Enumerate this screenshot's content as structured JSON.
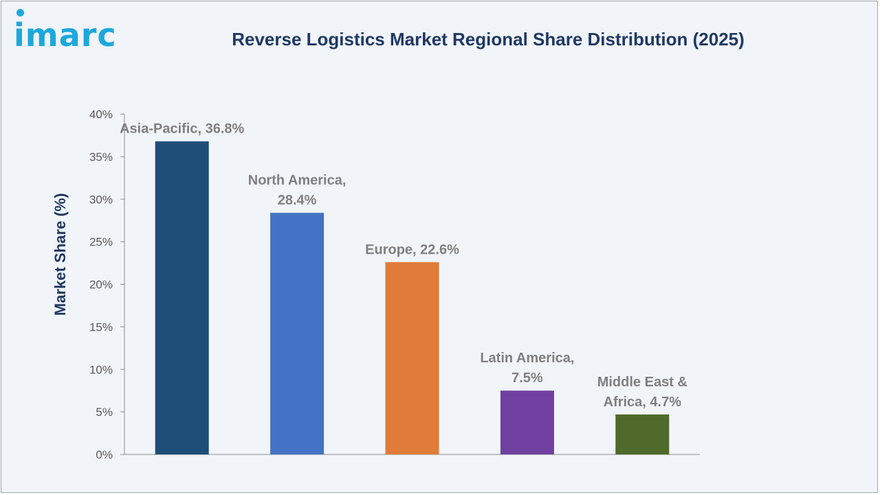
{
  "brand": {
    "logo_text": "imarc",
    "color": "#1ca8dd"
  },
  "chart_data": {
    "type": "bar",
    "title": "Reverse Logistics Market Regional Share Distribution (2025)",
    "xlabel": "",
    "ylabel": "Market Share (%)",
    "ylim": [
      0,
      40
    ],
    "yticks": [
      "0%",
      "5%",
      "10%",
      "15%",
      "20%",
      "25%",
      "30%",
      "35%",
      "40%"
    ],
    "ytick_values": [
      0,
      5,
      10,
      15,
      20,
      25,
      30,
      35,
      40
    ],
    "grid": false,
    "legend": "none",
    "categories": [
      "Asia-Pacific",
      "North America",
      "Europe",
      "Latin America",
      "Middle East & Africa"
    ],
    "values": [
      36.8,
      28.4,
      22.6,
      7.5,
      4.7
    ],
    "data_labels": [
      [
        "Asia-Pacific, 36.8%"
      ],
      [
        "North America,",
        "28.4%"
      ],
      [
        "Europe, 22.6%"
      ],
      [
        "Latin America,",
        "7.5%"
      ],
      [
        "Middle East &",
        "Africa, 4.7%"
      ]
    ],
    "colors": [
      "#1f4e79",
      "#4472c4",
      "#e07b39",
      "#7040a0",
      "#4f6a2a"
    ]
  }
}
